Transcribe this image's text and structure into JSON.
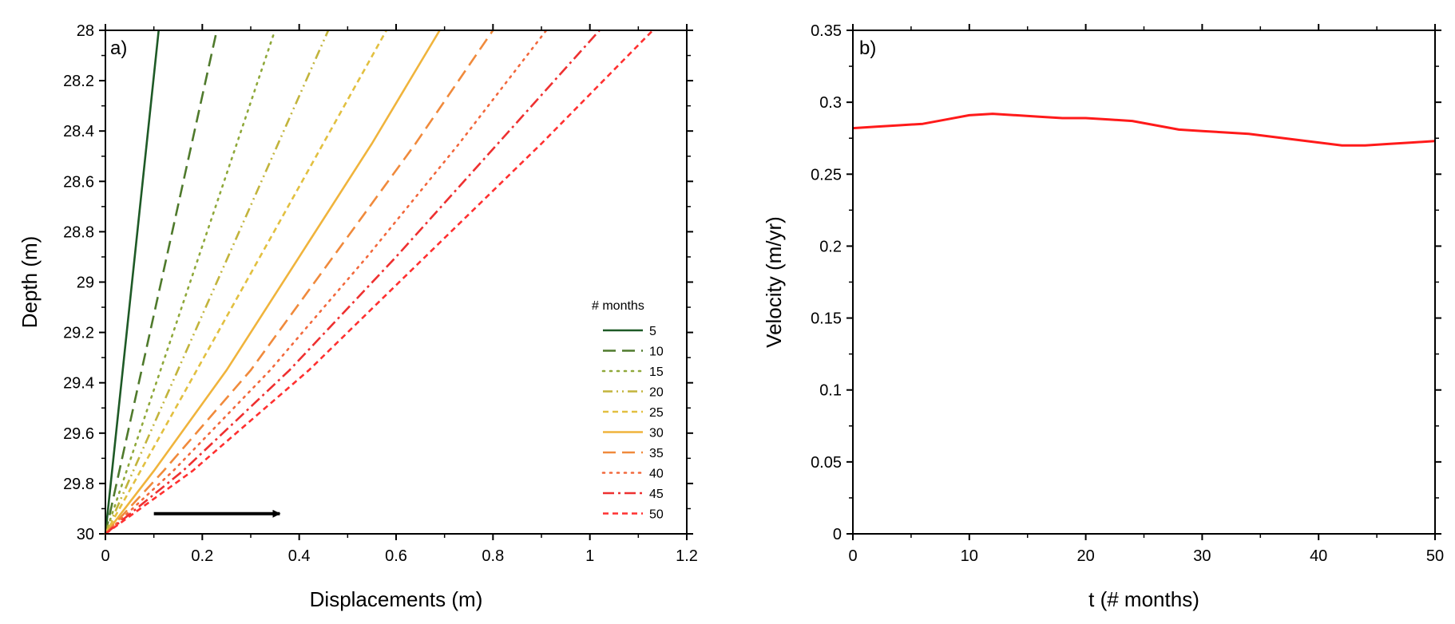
{
  "chart_data": [
    {
      "panel_label": "a)",
      "type": "line",
      "xlabel": "Displacements (m)",
      "ylabel": "Depth (m)",
      "xlim": [
        0,
        1.2
      ],
      "ylim": [
        28,
        30
      ],
      "y_inverted": true,
      "xticks": [
        "0",
        "0.2",
        "0.4",
        "0.6",
        "0.8",
        "1",
        "1.2"
      ],
      "yticks": [
        "28",
        "28.2",
        "28.4",
        "28.6",
        "28.8",
        "29",
        "29.2",
        "29.4",
        "29.6",
        "29.8",
        "30"
      ],
      "legend_title": "# months",
      "legend_position": "right",
      "arrow": {
        "from": [
          0.1,
          29.92
        ],
        "to": [
          0.36,
          29.92
        ],
        "color": "#000000"
      },
      "series": [
        {
          "name": "5",
          "color": "#1e5a26",
          "dash": "solid",
          "points": [
            [
              0,
              30
            ],
            [
              0.11,
              28
            ]
          ]
        },
        {
          "name": "10",
          "color": "#4f7a2c",
          "dash": "long-dash",
          "points": [
            [
              0,
              30
            ],
            [
              0.23,
              28
            ]
          ]
        },
        {
          "name": "15",
          "color": "#8fa83a",
          "dash": "dot",
          "points": [
            [
              0,
              30
            ],
            [
              0.35,
              28
            ]
          ]
        },
        {
          "name": "20",
          "color": "#c2b43c",
          "dash": "dash-dot-dot",
          "points": [
            [
              0,
              30
            ],
            [
              0.46,
              28
            ]
          ]
        },
        {
          "name": "25",
          "color": "#e2c040",
          "dash": "short-dash",
          "points": [
            [
              0,
              30
            ],
            [
              0.58,
              28
            ]
          ]
        },
        {
          "name": "30",
          "color": "#f0b43c",
          "dash": "solid",
          "points": [
            [
              0,
              30
            ],
            [
              0.1,
              29.75
            ],
            [
              0.25,
              29.35
            ],
            [
              0.4,
              28.9
            ],
            [
              0.55,
              28.45
            ],
            [
              0.69,
              28
            ]
          ]
        },
        {
          "name": "35",
          "color": "#f08a3c",
          "dash": "long-dash",
          "points": [
            [
              0,
              30
            ],
            [
              0.12,
              29.75
            ],
            [
              0.3,
              29.35
            ],
            [
              0.47,
              28.9
            ],
            [
              0.64,
              28.45
            ],
            [
              0.8,
              28
            ]
          ]
        },
        {
          "name": "40",
          "color": "#f2683c",
          "dash": "dot",
          "points": [
            [
              0,
              30
            ],
            [
              0.14,
              29.75
            ],
            [
              0.34,
              29.35
            ],
            [
              0.54,
              28.9
            ],
            [
              0.73,
              28.45
            ],
            [
              0.91,
              28
            ]
          ]
        },
        {
          "name": "45",
          "color": "#ee3030",
          "dash": "dash-dot",
          "points": [
            [
              0,
              30
            ],
            [
              0.16,
              29.75
            ],
            [
              0.38,
              29.35
            ],
            [
              0.6,
              28.9
            ],
            [
              0.81,
              28.45
            ],
            [
              1.02,
              28
            ]
          ]
        },
        {
          "name": "50",
          "color": "#ff3030",
          "dash": "short-dash",
          "points": [
            [
              0,
              30
            ],
            [
              0.18,
              29.75
            ],
            [
              0.42,
              29.35
            ],
            [
              0.66,
              28.9
            ],
            [
              0.9,
              28.45
            ],
            [
              1.13,
              28
            ]
          ]
        }
      ]
    },
    {
      "panel_label": "b)",
      "type": "line",
      "xlabel": "t (# months)",
      "ylabel": "Velocity (m/yr)",
      "xlim": [
        0,
        50
      ],
      "ylim": [
        0,
        0.35
      ],
      "xticks": [
        "0",
        "10",
        "20",
        "30",
        "40",
        "50"
      ],
      "yticks": [
        "0",
        "0.05",
        "0.1",
        "0.15",
        "0.2",
        "0.25",
        "0.3",
        "0.35"
      ],
      "series": [
        {
          "name": "velocity",
          "color": "#ff1a1a",
          "x": [
            0,
            2,
            4,
            6,
            8,
            10,
            12,
            14,
            16,
            18,
            20,
            22,
            24,
            26,
            28,
            30,
            32,
            34,
            36,
            38,
            40,
            42,
            44,
            46,
            48,
            50
          ],
          "y": [
            0.282,
            0.283,
            0.284,
            0.285,
            0.288,
            0.291,
            0.292,
            0.291,
            0.29,
            0.289,
            0.289,
            0.288,
            0.287,
            0.284,
            0.281,
            0.28,
            0.279,
            0.278,
            0.276,
            0.274,
            0.272,
            0.27,
            0.27,
            0.271,
            0.272,
            0.273
          ]
        }
      ]
    }
  ]
}
